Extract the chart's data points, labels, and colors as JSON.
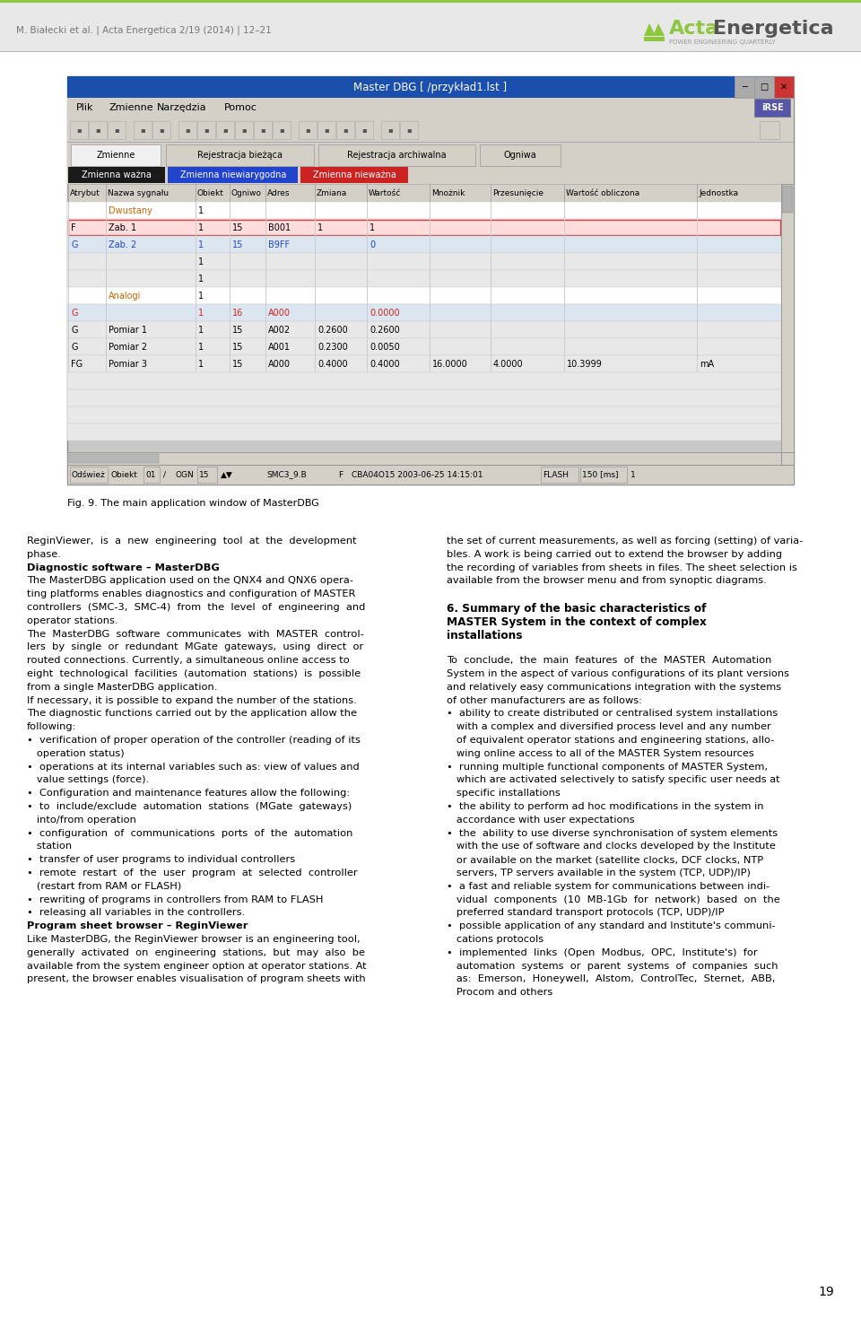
{
  "header_text": "M. Białecki et al. | Acta Energetica 2/19 (2014) | 12–21",
  "page_number": "19",
  "fig_caption": "Fig. 9. The main application window of MasterDBG",
  "window_title": "Master DBG [ /przykład1.lst ]",
  "menu_items": [
    "Plik",
    "Zmienne",
    "Narzędzia",
    "Pomoc"
  ],
  "tab_items": [
    "Zmienne",
    "Rejestracja bieżąca",
    "Rejestracja archiwalna",
    "Ogniwa"
  ],
  "status_labels": [
    "Zmienna ważna",
    "Zmienna niewiarygodna",
    "Zmienna nieważna"
  ],
  "table_headers": [
    "Atrybut",
    "Nazwa sygnału",
    "Obiekt",
    "Ogniwo",
    "Adres",
    "Zmiana",
    "Wartość",
    "Mnożnik",
    "Przesunięcie",
    "Wartość obliczona",
    "Jednostka"
  ],
  "col1_lines": [
    [
      "ReginViewer,  is  a  new  engineering  tool  at  the  development",
      "normal"
    ],
    [
      "phase.",
      "normal"
    ],
    [
      "Diagnostic software – MasterDBG",
      "bold"
    ],
    [
      "The MasterDBG application used on the QNX4 and QNX6 opera-",
      "normal"
    ],
    [
      "ting platforms enables diagnostics and configuration of MASTER",
      "normal"
    ],
    [
      "controllers  (SMC-3,  SMC-4)  from  the  level  of  engineering  and",
      "normal"
    ],
    [
      "operator stations.",
      "normal"
    ],
    [
      "The  MasterDBG  software  communicates  with  MASTER  control-",
      "normal"
    ],
    [
      "lers  by  single  or  redundant  MGate  gateways,  using  direct  or",
      "normal"
    ],
    [
      "routed connections. Currently, a simultaneous online access to",
      "normal"
    ],
    [
      "eight  technological  facilities  (automation  stations)  is  possible",
      "normal"
    ],
    [
      "from a single MasterDBG application.",
      "normal"
    ],
    [
      "If necessary, it is possible to expand the number of the stations.",
      "normal"
    ],
    [
      "The diagnostic functions carried out by the application allow the",
      "normal"
    ],
    [
      "following:",
      "normal"
    ],
    [
      "•  verification of proper operation of the controller (reading of its",
      "normal"
    ],
    [
      "   operation status)",
      "normal"
    ],
    [
      "•  operations at its internal variables such as: view of values and",
      "normal"
    ],
    [
      "   value settings (force).",
      "normal"
    ],
    [
      "•  Configuration and maintenance features allow the following:",
      "normal"
    ],
    [
      "•  to  include/exclude  automation  stations  (MGate  gateways)",
      "normal"
    ],
    [
      "   into/from operation",
      "normal"
    ],
    [
      "•  configuration  of  communications  ports  of  the  automation",
      "normal"
    ],
    [
      "   station",
      "normal"
    ],
    [
      "•  transfer of user programs to individual controllers",
      "normal"
    ],
    [
      "•  remote  restart  of  the  user  program  at  selected  controller",
      "normal"
    ],
    [
      "   (restart from RAM or FLASH)",
      "normal"
    ],
    [
      "•  rewriting of programs in controllers from RAM to FLASH",
      "normal"
    ],
    [
      "•  releasing all variables in the controllers.",
      "normal"
    ],
    [
      "Program sheet browser – ReginViewer",
      "bold"
    ],
    [
      "Like MasterDBG, the ReginViewer browser is an engineering tool,",
      "normal"
    ],
    [
      "generally  activated  on  engineering  stations,  but  may  also  be",
      "normal"
    ],
    [
      "available from the system engineer option at operator stations. At",
      "normal"
    ],
    [
      "present, the browser enables visualisation of program sheets with",
      "normal"
    ]
  ],
  "col2_lines": [
    [
      "the set of current measurements, as well as forcing (setting) of varia-",
      "normal"
    ],
    [
      "bles. A work is being carried out to extend the browser by adding",
      "normal"
    ],
    [
      "the recording of variables from sheets in files. The sheet selection is",
      "normal"
    ],
    [
      "available from the browser menu and from synoptic diagrams.",
      "normal"
    ],
    [
      "",
      "normal"
    ],
    [
      "6. Summary of the basic characteristics of",
      "bold_heading"
    ],
    [
      "MASTER System in the context of complex",
      "bold_heading"
    ],
    [
      "installations",
      "bold_heading"
    ],
    [
      "",
      "normal"
    ],
    [
      "To  conclude,  the  main  features  of  the  MASTER  Automation",
      "normal"
    ],
    [
      "System in the aspect of various configurations of its plant versions",
      "normal"
    ],
    [
      "and relatively easy communications integration with the systems",
      "normal"
    ],
    [
      "of other manufacturers are as follows:",
      "normal"
    ],
    [
      "•  ability to create distributed or centralised system installations",
      "normal"
    ],
    [
      "   with a complex and diversified process level and any number",
      "normal"
    ],
    [
      "   of equivalent operator stations and engineering stations, allo-",
      "normal"
    ],
    [
      "   wing online access to all of the MASTER System resources",
      "normal"
    ],
    [
      "•  running multiple functional components of MASTER System,",
      "normal"
    ],
    [
      "   which are activated selectively to satisfy specific user needs at",
      "normal"
    ],
    [
      "   specific installations",
      "normal"
    ],
    [
      "•  the ability to perform ad hoc modifications in the system in",
      "normal"
    ],
    [
      "   accordance with user expectations",
      "normal"
    ],
    [
      "•  the  ability to use diverse synchronisation of system elements",
      "normal"
    ],
    [
      "   with the use of software and clocks developed by the Institute",
      "normal"
    ],
    [
      "   or available on the market (satellite clocks, DCF clocks, NTP",
      "normal"
    ],
    [
      "   servers, TP servers available in the system (TCP, UDP)/IP)",
      "normal"
    ],
    [
      "•  a fast and reliable system for communications between indi-",
      "normal"
    ],
    [
      "   vidual  components  (10  MB-1Gb  for  network)  based  on  the",
      "normal"
    ],
    [
      "   preferred standard transport protocols (TCP, UDP)/IP",
      "normal"
    ],
    [
      "•  possible application of any standard and Institute's communi-",
      "normal"
    ],
    [
      "   cations protocols",
      "normal"
    ],
    [
      "•  implemented  links  (Open  Modbus,  OPC,  Institute's)  for",
      "normal"
    ],
    [
      "   automation  systems  or  parent  systems  of  companies  such",
      "normal"
    ],
    [
      "   as:  Emerson,  Honeywell,  Alstom,  ControlTec,  Sternet,  ABB,",
      "normal"
    ],
    [
      "   Procom and others",
      "normal"
    ]
  ],
  "table_rows": [
    {
      "atr": "",
      "nam": "Dwustany",
      "obj": "1",
      "ogn": "",
      "adr": "",
      "zm": "",
      "wrt": "",
      "mn": "",
      "prz": "",
      "wo": "",
      "jed": "",
      "style": "section_orange",
      "bg": "#ffffff"
    },
    {
      "atr": "F",
      "nam": "Zab. 1",
      "obj": "1",
      "ogn": "15",
      "adr": "B001",
      "zm": "1",
      "wrt": "1",
      "mn": "",
      "prz": "",
      "wo": "",
      "jed": "",
      "style": "red_border",
      "bg": "#ffdddd"
    },
    {
      "atr": "G",
      "nam": "Zab. 2",
      "obj": "1",
      "ogn": "15",
      "adr": "B9FF",
      "zm": "",
      "wrt": "0",
      "mn": "",
      "prz": "",
      "wo": "",
      "jed": "",
      "style": "blue",
      "bg": "#dce6f0"
    },
    {
      "atr": "",
      "nam": "",
      "obj": "1",
      "ogn": "",
      "adr": "",
      "zm": "",
      "wrt": "",
      "mn": "",
      "prz": "",
      "wo": "",
      "jed": "",
      "style": "normal",
      "bg": "#e8e8e8"
    },
    {
      "atr": "",
      "nam": "",
      "obj": "1",
      "ogn": "",
      "adr": "",
      "zm": "",
      "wrt": "",
      "mn": "",
      "prz": "",
      "wo": "",
      "jed": "",
      "style": "normal",
      "bg": "#e8e8e8"
    },
    {
      "atr": "",
      "nam": "Analogi",
      "obj": "1",
      "ogn": "",
      "adr": "",
      "zm": "",
      "wrt": "",
      "mn": "",
      "prz": "",
      "wo": "",
      "jed": "",
      "style": "section_orange",
      "bg": "#ffffff"
    },
    {
      "atr": "G",
      "nam": "",
      "obj": "1",
      "ogn": "16",
      "adr": "A000",
      "zm": "",
      "wrt": "0.0000",
      "mn": "",
      "prz": "",
      "wo": "",
      "jed": "",
      "style": "red",
      "bg": "#dce6f0"
    },
    {
      "atr": "G",
      "nam": "Pomiar 1",
      "obj": "1",
      "ogn": "15",
      "adr": "A002",
      "zm": "0.2600",
      "wrt": "0.2600",
      "mn": "",
      "prz": "",
      "wo": "",
      "jed": "",
      "style": "normal",
      "bg": "#e8e8e8"
    },
    {
      "atr": "G",
      "nam": "Pomiar 2",
      "obj": "1",
      "ogn": "15",
      "adr": "A001",
      "zm": "0.2300",
      "wrt": "0.0050",
      "mn": "",
      "prz": "",
      "wo": "",
      "jed": "",
      "style": "normal",
      "bg": "#e8e8e8"
    },
    {
      "atr": "FG",
      "nam": "Pomiar 3",
      "obj": "1",
      "ogn": "15",
      "adr": "A000",
      "zm": "0.4000",
      "wrt": "0.4000",
      "mn": "16.0000",
      "prz": "4.0000",
      "wo": "10.3999",
      "jed": "mA",
      "style": "normal",
      "bg": "#e8e8e8"
    }
  ]
}
